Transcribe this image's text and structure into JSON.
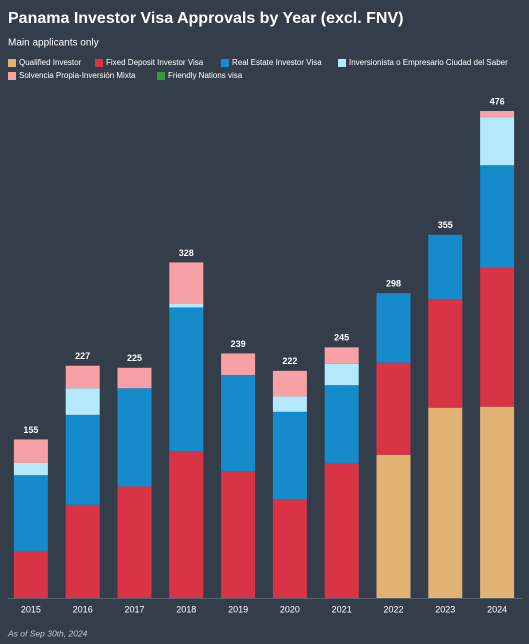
{
  "chart_data": {
    "type": "stacked_bar",
    "title": "Panama Investor Visa Approvals by Year (excl. FNV)",
    "subtitle": "Main applicants only",
    "footnote": "As of Sep 30th, 2024",
    "categories": [
      "2015",
      "2016",
      "2017",
      "2018",
      "2019",
      "2020",
      "2021",
      "2022",
      "2023",
      "2024"
    ],
    "totals": [
      155,
      227,
      225,
      328,
      239,
      222,
      245,
      298,
      355,
      476
    ],
    "series": [
      {
        "name": "Qualified Investor",
        "color": "#e2b273",
        "values": [
          0,
          0,
          0,
          0,
          0,
          0,
          0,
          140,
          186,
          187
        ]
      },
      {
        "name": "Fixed Deposit Investor Visa",
        "color": "#d93446",
        "values": [
          46,
          91,
          109,
          143,
          124,
          96,
          132,
          90,
          106,
          136
        ]
      },
      {
        "name": "Real Estate Investor Visa",
        "color": "#168bcb",
        "values": [
          74,
          88,
          96,
          141,
          94,
          86,
          76,
          68,
          63,
          100
        ]
      },
      {
        "name": "Inversionista o Empresario Ciudad del Saber",
        "color": "#b3e9fb",
        "values": [
          12,
          26,
          0,
          4,
          0,
          15,
          21,
          0,
          0,
          47
        ]
      },
      {
        "name": "Solvencia Propia-Inversión Mixta",
        "color": "#f7a0a6",
        "values": [
          23,
          22,
          20,
          40,
          21,
          25,
          16,
          0,
          0,
          6
        ]
      },
      {
        "name": "Friendly Nations visa",
        "color": "#2ca02c",
        "values": [
          0,
          0,
          0,
          0,
          0,
          0,
          0,
          0,
          0,
          0
        ]
      }
    ]
  }
}
